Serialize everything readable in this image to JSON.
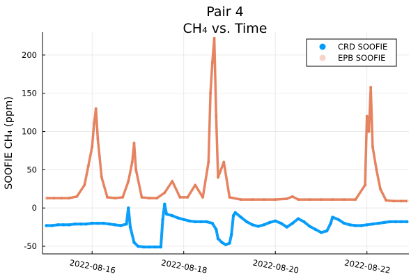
{
  "chart_data": {
    "type": "scatter",
    "title": "Pair 4",
    "subtitle": "CH₄ vs. Time",
    "xlabel": "",
    "ylabel": "SOOFIE CH₄ (ppm)",
    "x_ticks": [
      "2022-08-16",
      "2022-08-18",
      "2022-08-20",
      "2022-08-22"
    ],
    "y_ticks": [
      -50,
      0,
      50,
      100,
      150,
      200
    ],
    "xlim": [
      "2022-08-14T22:00",
      "2022-08-22T22:00"
    ],
    "ylim": [
      -60,
      230
    ],
    "grid": true,
    "legend_position": "top-right",
    "series": [
      {
        "name": "CRD SOOFIE",
        "color": "#009af9",
        "points": [
          [
            "2022-08-15T00:00",
            -23
          ],
          [
            "2022-08-15T03:00",
            -23
          ],
          [
            "2022-08-15T06:00",
            -22
          ],
          [
            "2022-08-15T09:00",
            -22
          ],
          [
            "2022-08-15T12:00",
            -22
          ],
          [
            "2022-08-15T15:00",
            -21
          ],
          [
            "2022-08-15T18:00",
            -21
          ],
          [
            "2022-08-15T21:00",
            -21
          ],
          [
            "2022-08-16T00:00",
            -20
          ],
          [
            "2022-08-16T03:00",
            -20
          ],
          [
            "2022-08-16T06:00",
            -20
          ],
          [
            "2022-08-16T09:00",
            -21
          ],
          [
            "2022-08-16T12:00",
            -22
          ],
          [
            "2022-08-16T15:00",
            -23
          ],
          [
            "2022-08-16T18:00",
            -21
          ],
          [
            "2022-08-16T19:00",
            0
          ],
          [
            "2022-08-16T20:00",
            -25
          ],
          [
            "2022-08-16T22:00",
            -45
          ],
          [
            "2022-08-17T00:00",
            -50
          ],
          [
            "2022-08-17T03:00",
            -51
          ],
          [
            "2022-08-17T06:00",
            -51
          ],
          [
            "2022-08-17T09:00",
            -51
          ],
          [
            "2022-08-17T12:00",
            -51
          ],
          [
            "2022-08-17T13:00",
            -15
          ],
          [
            "2022-08-17T14:00",
            5
          ],
          [
            "2022-08-17T15:00",
            -8
          ],
          [
            "2022-08-17T18:00",
            -10
          ],
          [
            "2022-08-17T21:00",
            -13
          ],
          [
            "2022-08-18T00:00",
            -15
          ],
          [
            "2022-08-18T03:00",
            -17
          ],
          [
            "2022-08-18T06:00",
            -18
          ],
          [
            "2022-08-18T09:00",
            -18
          ],
          [
            "2022-08-18T12:00",
            -18
          ],
          [
            "2022-08-18T15:00",
            -20
          ],
          [
            "2022-08-18T17:00",
            -28
          ],
          [
            "2022-08-18T18:00",
            -40
          ],
          [
            "2022-08-18T20:00",
            -45
          ],
          [
            "2022-08-18T22:00",
            -48
          ],
          [
            "2022-08-19T00:00",
            -46
          ],
          [
            "2022-08-19T01:00",
            -35
          ],
          [
            "2022-08-19T02:00",
            -10
          ],
          [
            "2022-08-19T03:00",
            -6
          ],
          [
            "2022-08-19T06:00",
            -12
          ],
          [
            "2022-08-19T09:00",
            -18
          ],
          [
            "2022-08-19T12:00",
            -22
          ],
          [
            "2022-08-19T15:00",
            -24
          ],
          [
            "2022-08-19T18:00",
            -22
          ],
          [
            "2022-08-19T21:00",
            -19
          ],
          [
            "2022-08-20T00:00",
            -17
          ],
          [
            "2022-08-20T03:00",
            -20
          ],
          [
            "2022-08-20T06:00",
            -25
          ],
          [
            "2022-08-20T09:00",
            -20
          ],
          [
            "2022-08-20T12:00",
            -14
          ],
          [
            "2022-08-20T15:00",
            -18
          ],
          [
            "2022-08-20T18:00",
            -24
          ],
          [
            "2022-08-20T21:00",
            -28
          ],
          [
            "2022-08-21T00:00",
            -32
          ],
          [
            "2022-08-21T03:00",
            -30
          ],
          [
            "2022-08-21T05:00",
            -20
          ],
          [
            "2022-08-21T06:00",
            -12
          ],
          [
            "2022-08-21T09:00",
            -15
          ],
          [
            "2022-08-21T12:00",
            -20
          ],
          [
            "2022-08-21T15:00",
            -22
          ],
          [
            "2022-08-21T18:00",
            -23
          ],
          [
            "2022-08-21T21:00",
            -23
          ],
          [
            "2022-08-22T00:00",
            -22
          ],
          [
            "2022-08-22T03:00",
            -21
          ],
          [
            "2022-08-22T06:00",
            -20
          ],
          [
            "2022-08-22T09:00",
            -19
          ],
          [
            "2022-08-22T12:00",
            -18
          ],
          [
            "2022-08-22T15:00",
            -18
          ],
          [
            "2022-08-22T18:00",
            -18
          ],
          [
            "2022-08-22T21:00",
            -18
          ]
        ]
      },
      {
        "name": "EPB SOOFIE",
        "color": "#e26f46",
        "points": [
          [
            "2022-08-15T00:00",
            13
          ],
          [
            "2022-08-15T04:00",
            13
          ],
          [
            "2022-08-15T08:00",
            13
          ],
          [
            "2022-08-15T12:00",
            13
          ],
          [
            "2022-08-15T16:00",
            15
          ],
          [
            "2022-08-15T20:00",
            30
          ],
          [
            "2022-08-15T22:00",
            55
          ],
          [
            "2022-08-16T00:00",
            80
          ],
          [
            "2022-08-16T01:00",
            110
          ],
          [
            "2022-08-16T02:00",
            130
          ],
          [
            "2022-08-16T03:00",
            90
          ],
          [
            "2022-08-16T05:00",
            40
          ],
          [
            "2022-08-16T08:00",
            14
          ],
          [
            "2022-08-16T12:00",
            13
          ],
          [
            "2022-08-16T16:00",
            14
          ],
          [
            "2022-08-16T19:00",
            35
          ],
          [
            "2022-08-16T21:00",
            60
          ],
          [
            "2022-08-16T22:00",
            85
          ],
          [
            "2022-08-16T23:00",
            50
          ],
          [
            "2022-08-17T02:00",
            14
          ],
          [
            "2022-08-17T06:00",
            13
          ],
          [
            "2022-08-17T10:00",
            13
          ],
          [
            "2022-08-17T14:00",
            20
          ],
          [
            "2022-08-17T18:00",
            35
          ],
          [
            "2022-08-17T22:00",
            14
          ],
          [
            "2022-08-18T02:00",
            14
          ],
          [
            "2022-08-18T06:00",
            30
          ],
          [
            "2022-08-18T10:00",
            14
          ],
          [
            "2022-08-18T13:00",
            60
          ],
          [
            "2022-08-18T14:00",
            150
          ],
          [
            "2022-08-18T15:00",
            190
          ],
          [
            "2022-08-18T16:00",
            222
          ],
          [
            "2022-08-18T17:00",
            120
          ],
          [
            "2022-08-18T18:00",
            40
          ],
          [
            "2022-08-18T21:00",
            60
          ],
          [
            "2022-08-19T00:00",
            14
          ],
          [
            "2022-08-19T06:00",
            11
          ],
          [
            "2022-08-19T12:00",
            11
          ],
          [
            "2022-08-19T18:00",
            11
          ],
          [
            "2022-08-20T00:00",
            11
          ],
          [
            "2022-08-20T06:00",
            12
          ],
          [
            "2022-08-20T09:00",
            15
          ],
          [
            "2022-08-20T12:00",
            11
          ],
          [
            "2022-08-20T18:00",
            11
          ],
          [
            "2022-08-21T00:00",
            11
          ],
          [
            "2022-08-21T06:00",
            11
          ],
          [
            "2022-08-21T12:00",
            11
          ],
          [
            "2022-08-21T18:00",
            11
          ],
          [
            "2022-08-21T23:00",
            30
          ],
          [
            "2022-08-22T00:00",
            120
          ],
          [
            "2022-08-22T01:00",
            100
          ],
          [
            "2022-08-22T02:00",
            158
          ],
          [
            "2022-08-22T03:00",
            80
          ],
          [
            "2022-08-22T05:00",
            50
          ],
          [
            "2022-08-22T07:00",
            25
          ],
          [
            "2022-08-22T10:00",
            10
          ],
          [
            "2022-08-22T14:00",
            9
          ],
          [
            "2022-08-22T18:00",
            9
          ],
          [
            "2022-08-22T21:00",
            9
          ]
        ]
      }
    ]
  }
}
